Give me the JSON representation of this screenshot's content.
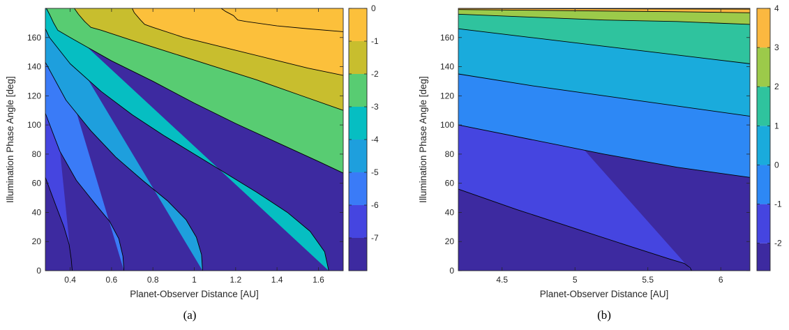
{
  "chart_data": [
    {
      "type": "contour",
      "panel_label": "(a)",
      "xlabel": "Planet-Observer Distance [AU]",
      "ylabel": "Illumination Phase Angle [deg]",
      "xlim": [
        0.28,
        1.72
      ],
      "ylim": [
        0,
        180
      ],
      "xticks": [
        0.4,
        0.6,
        0.8,
        1,
        1.2,
        1.4,
        1.6
      ],
      "xtick_labels": [
        "0.4",
        "0.6",
        "0.8",
        "1",
        "1.2",
        "1.4",
        "1.6"
      ],
      "yticks": [
        0,
        20,
        40,
        60,
        80,
        100,
        120,
        140,
        160
      ],
      "ytick_labels": [
        "0",
        "20",
        "40",
        "60",
        "80",
        "100",
        "120",
        "140",
        "160"
      ],
      "colorbar": {
        "range": [
          -8,
          0
        ],
        "ticks": [
          -7,
          -6,
          -5,
          -4,
          -3,
          -2,
          -1,
          0
        ],
        "tick_labels": [
          "-7",
          "-6",
          "-5",
          "-4",
          "-3",
          "-2",
          "-1",
          "0"
        ]
      },
      "levels": [
        {
          "value": -7.5,
          "color": "#3d2aa0"
        },
        {
          "value": -6.5,
          "color": "#4545e0"
        },
        {
          "value": -5.5,
          "color": "#3a7bf7"
        },
        {
          "value": -4.5,
          "color": "#1e9fdd"
        },
        {
          "value": -3.5,
          "color": "#06bec2"
        },
        {
          "value": -2.5,
          "color": "#58cc72"
        },
        {
          "value": -1.5,
          "color": "#c8be2e"
        },
        {
          "value": -0.5,
          "color": "#fcc03b"
        }
      ],
      "contours": [
        {
          "value": -7,
          "points": [
            [
              0.28,
              64
            ],
            [
              0.33,
              45
            ],
            [
              0.37,
              30
            ],
            [
              0.395,
              18
            ],
            [
              0.405,
              8
            ],
            [
              0.41,
              0
            ]
          ]
        },
        {
          "value": -6,
          "points": [
            [
              0.28,
              108
            ],
            [
              0.35,
              82
            ],
            [
              0.43,
              62
            ],
            [
              0.52,
              46
            ],
            [
              0.59,
              34
            ],
            [
              0.635,
              22
            ],
            [
              0.655,
              10
            ],
            [
              0.66,
              0
            ]
          ]
        },
        {
          "value": -5,
          "points": [
            [
              0.28,
              143
            ],
            [
              0.38,
              117
            ],
            [
              0.5,
              96
            ],
            [
              0.62,
              78
            ],
            [
              0.75,
              62
            ],
            [
              0.87,
              48
            ],
            [
              0.96,
              35
            ],
            [
              1.01,
              23
            ],
            [
              1.035,
              11
            ],
            [
              1.04,
              0
            ]
          ]
        },
        {
          "value": -4,
          "points": [
            [
              0.28,
              166
            ],
            [
              0.3,
              160
            ],
            [
              0.4,
              142
            ],
            [
              0.55,
              123
            ],
            [
              0.7,
              107
            ],
            [
              0.85,
              93
            ],
            [
              1.0,
              80
            ],
            [
              1.15,
              67
            ],
            [
              1.3,
              54
            ],
            [
              1.45,
              40
            ],
            [
              1.56,
              27
            ],
            [
              1.63,
              13
            ],
            [
              1.65,
              0
            ]
          ]
        },
        {
          "value": -3,
          "points": [
            [
              0.285,
              180
            ],
            [
              0.3,
              176
            ],
            [
              0.32,
              170
            ],
            [
              0.34,
              165
            ],
            [
              0.4,
              160
            ],
            [
              0.6,
              144
            ],
            [
              0.8,
              130
            ],
            [
              1.0,
              115
            ],
            [
              1.2,
              101
            ],
            [
              1.4,
              88
            ],
            [
              1.6,
              75
            ],
            [
              1.72,
              67
            ]
          ]
        },
        {
          "value": -2,
          "points": [
            [
              0.42,
              180
            ],
            [
              0.44,
              176
            ],
            [
              0.47,
              171
            ],
            [
              0.5,
              167
            ],
            [
              0.55,
              165
            ],
            [
              0.7,
              158
            ],
            [
              0.9,
              149
            ],
            [
              1.1,
              140
            ],
            [
              1.3,
              131
            ],
            [
              1.5,
              121
            ],
            [
              1.72,
              110
            ]
          ]
        },
        {
          "value": -1,
          "points": [
            [
              0.7,
              180
            ],
            [
              0.71,
              177
            ],
            [
              0.74,
              172
            ],
            [
              0.76,
              169
            ],
            [
              0.8,
              167
            ],
            [
              0.95,
              160
            ],
            [
              1.15,
              153
            ],
            [
              1.35,
              146
            ],
            [
              1.55,
              139
            ],
            [
              1.72,
              134
            ]
          ]
        },
        {
          "value": 0,
          "points": [
            [
              1.13,
              180
            ],
            [
              1.15,
              178
            ],
            [
              1.19,
              175
            ],
            [
              1.21,
              172
            ],
            [
              1.25,
              171
            ],
            [
              1.4,
              168
            ],
            [
              1.55,
              166
            ],
            [
              1.72,
              164
            ]
          ]
        }
      ]
    },
    {
      "type": "contour",
      "panel_label": "(b)",
      "xlabel": "Planet-Observer Distance [AU]",
      "ylabel": "Illumination Phase Angle [deg]",
      "xlim": [
        4.2,
        6.2
      ],
      "ylim": [
        0,
        180
      ],
      "xticks": [
        4.5,
        5,
        5.5,
        6
      ],
      "xtick_labels": [
        "4.5",
        "5",
        "5.5",
        "6"
      ],
      "yticks": [
        0,
        20,
        40,
        60,
        80,
        100,
        120,
        140,
        160
      ],
      "ytick_labels": [
        "0",
        "20",
        "40",
        "60",
        "80",
        "100",
        "120",
        "140",
        "160"
      ],
      "colorbar": {
        "range": [
          -2.7,
          4
        ],
        "ticks": [
          -2,
          -1,
          0,
          1,
          2,
          3,
          4
        ],
        "tick_labels": [
          "-2",
          "-1",
          "0",
          "1",
          "2",
          "3",
          "4"
        ]
      },
      "levels": [
        {
          "value": -2.5,
          "color": "#3d2aa0"
        },
        {
          "value": -1.5,
          "color": "#4545e0"
        },
        {
          "value": -0.5,
          "color": "#2d88f5"
        },
        {
          "value": 0.5,
          "color": "#1aabdc"
        },
        {
          "value": 1.5,
          "color": "#2fc39e"
        },
        {
          "value": 2.5,
          "color": "#9cca4a"
        },
        {
          "value": 3.5,
          "color": "#fbb840"
        }
      ],
      "contours": [
        {
          "value": -2,
          "points": [
            [
              4.2,
              56
            ],
            [
              4.6,
              42
            ],
            [
              5.0,
              29
            ],
            [
              5.4,
              16
            ],
            [
              5.65,
              8
            ],
            [
              5.75,
              5
            ],
            [
              5.79,
              2
            ],
            [
              5.8,
              0
            ]
          ]
        },
        {
          "value": -1,
          "points": [
            [
              4.2,
              100
            ],
            [
              4.7,
              90
            ],
            [
              5.2,
              80
            ],
            [
              5.7,
              71
            ],
            [
              6.2,
              64
            ]
          ]
        },
        {
          "value": 0,
          "points": [
            [
              4.2,
              135
            ],
            [
              4.7,
              127
            ],
            [
              5.2,
              120
            ],
            [
              5.7,
              113
            ],
            [
              6.2,
              106
            ]
          ]
        },
        {
          "value": 1,
          "points": [
            [
              4.2,
              166
            ],
            [
              4.7,
              160
            ],
            [
              5.2,
              154
            ],
            [
              5.7,
              148
            ],
            [
              6.2,
              142
            ]
          ]
        },
        {
          "value": 2,
          "points": [
            [
              4.2,
              176
            ],
            [
              4.7,
              174
            ],
            [
              5.2,
              172
            ],
            [
              5.7,
              171
            ],
            [
              6.2,
              169
            ]
          ]
        },
        {
          "value": 3,
          "points": [
            [
              4.2,
              179.2
            ],
            [
              4.7,
              178.7
            ],
            [
              5.2,
              178.2
            ],
            [
              5.7,
              177.7
            ],
            [
              6.2,
              177
            ]
          ]
        },
        {
          "value": 4,
          "points": [
            [
              4.2,
              179.9
            ],
            [
              5.2,
              179.7
            ],
            [
              6.2,
              179.5
            ]
          ]
        }
      ]
    }
  ]
}
